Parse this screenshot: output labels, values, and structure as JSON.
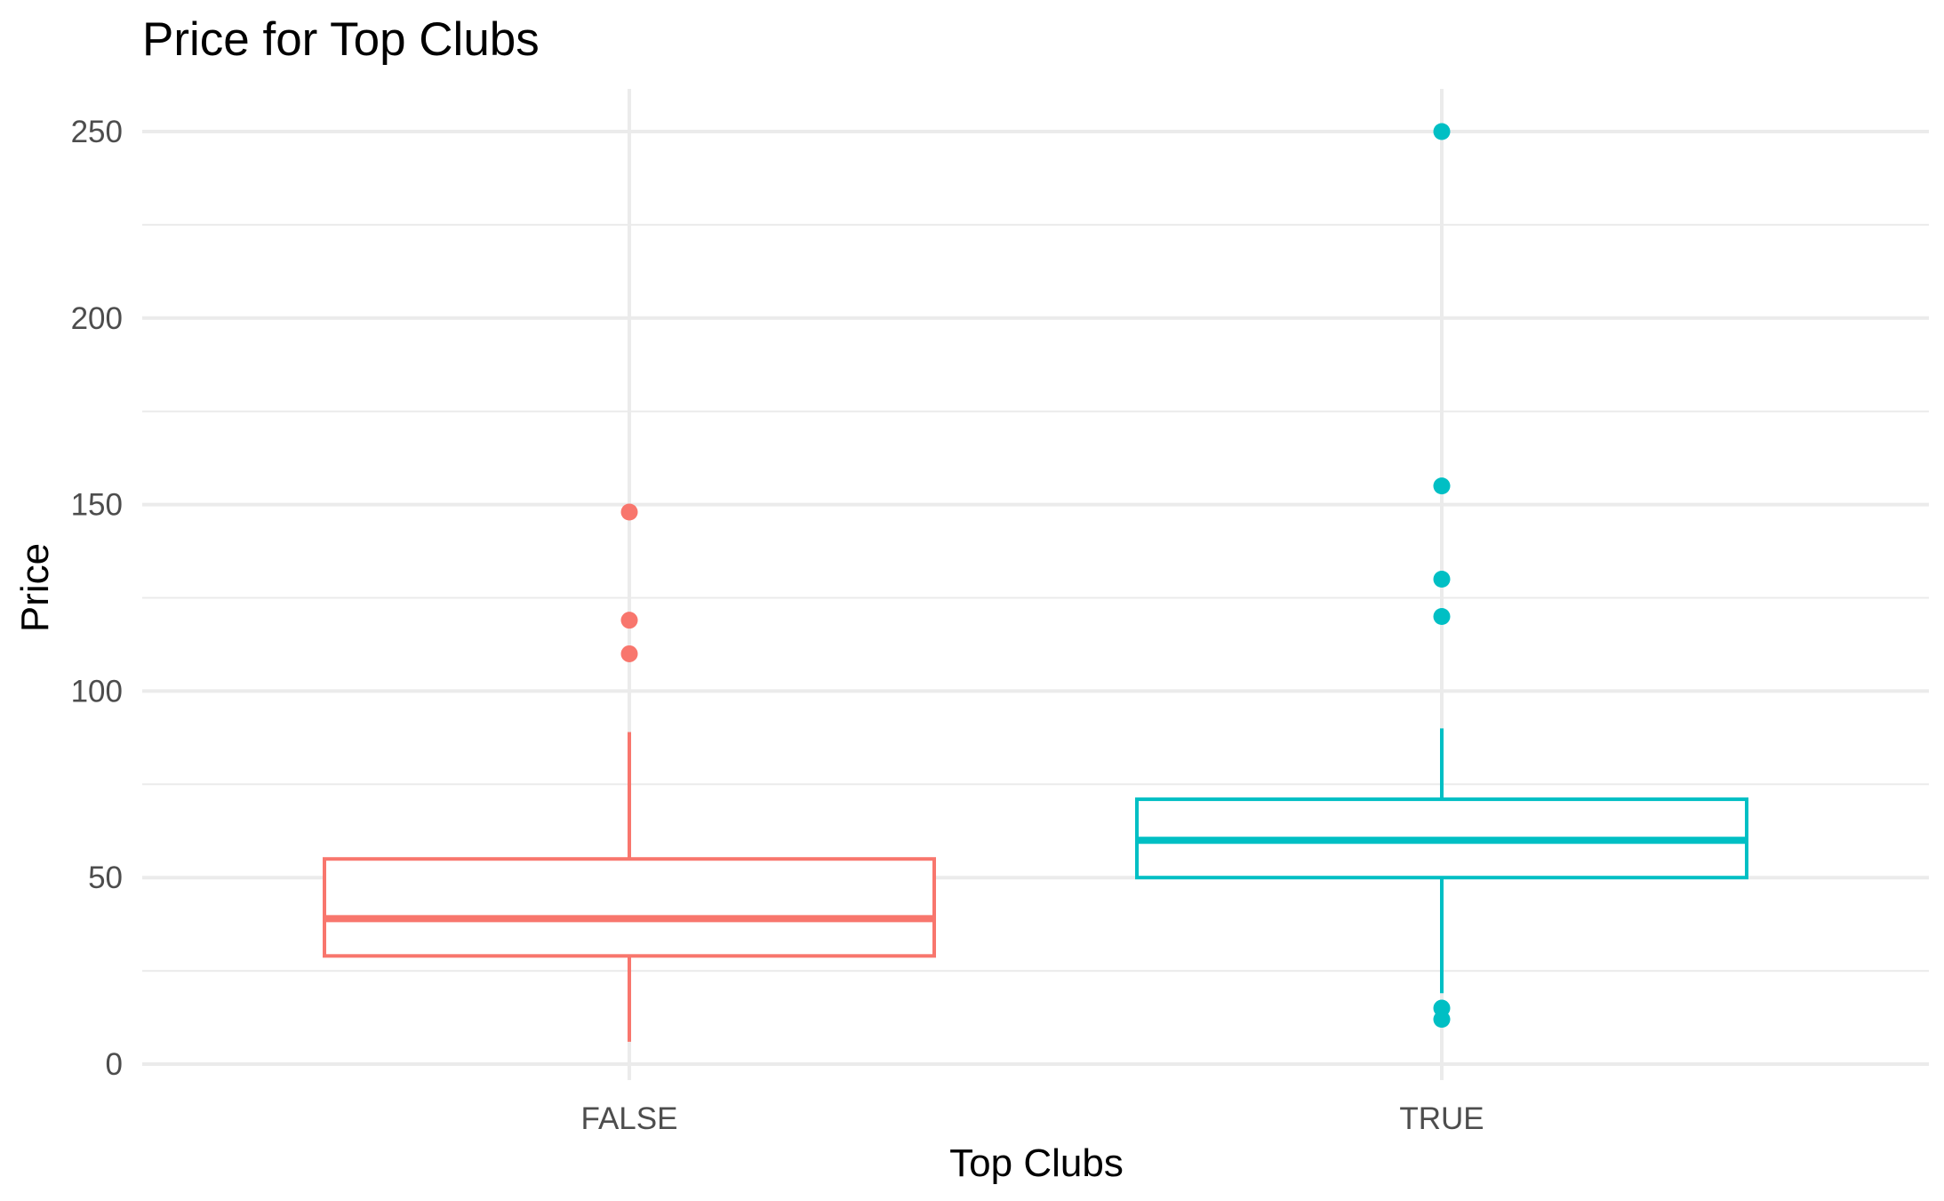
{
  "chart_data": {
    "type": "boxplot",
    "title": "Price for Top Clubs",
    "xlabel": "Top Clubs",
    "ylabel": "Price",
    "categories": [
      "FALSE",
      "TRUE"
    ],
    "ylim": [
      -5,
      262
    ],
    "yticks": [
      0,
      50,
      100,
      150,
      200,
      250
    ],
    "grid": true,
    "legend": "none",
    "boxes": [
      {
        "category": "FALSE",
        "color": "#F8766D",
        "whisker_low": 6,
        "q1": 29,
        "median": 39,
        "q3": 55,
        "whisker_high": 89,
        "outliers": [
          110,
          119,
          148
        ]
      },
      {
        "category": "TRUE",
        "color": "#00BFC4",
        "whisker_low": 19,
        "q1": 50,
        "median": 60,
        "q3": 71,
        "whisker_high": 90,
        "outliers": [
          12,
          15,
          120,
          130,
          155,
          250
        ]
      }
    ]
  }
}
